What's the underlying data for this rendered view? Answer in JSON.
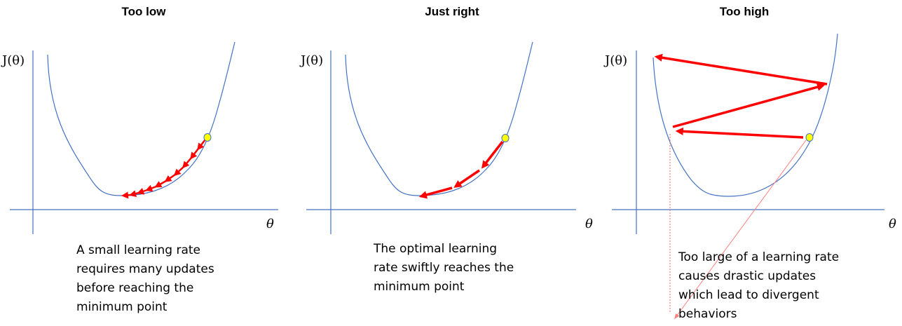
{
  "panels": [
    {
      "title": "Too low",
      "ylabel": "J(θ)",
      "xlabel": "θ",
      "caption": [
        "A small learning rate",
        "requires many updates",
        "before reaching the",
        "minimum point"
      ]
    },
    {
      "title": "Just right",
      "ylabel": "J(θ)",
      "xlabel": "θ",
      "caption": [
        "The optimal learning",
        "rate swiftly reaches the",
        "minimum point"
      ]
    },
    {
      "title": "Too high",
      "ylabel": "J(θ)",
      "xlabel": "θ",
      "caption": [
        "Too large of a learning rate",
        "causes drastic updates",
        "which lead to divergent",
        "behaviors"
      ]
    }
  ],
  "colors": {
    "axis": "#4472c4",
    "curve": "#4472c4",
    "arrow": "#ff0000",
    "start_point": "#ffff00",
    "pointer": "#ff8080"
  }
}
